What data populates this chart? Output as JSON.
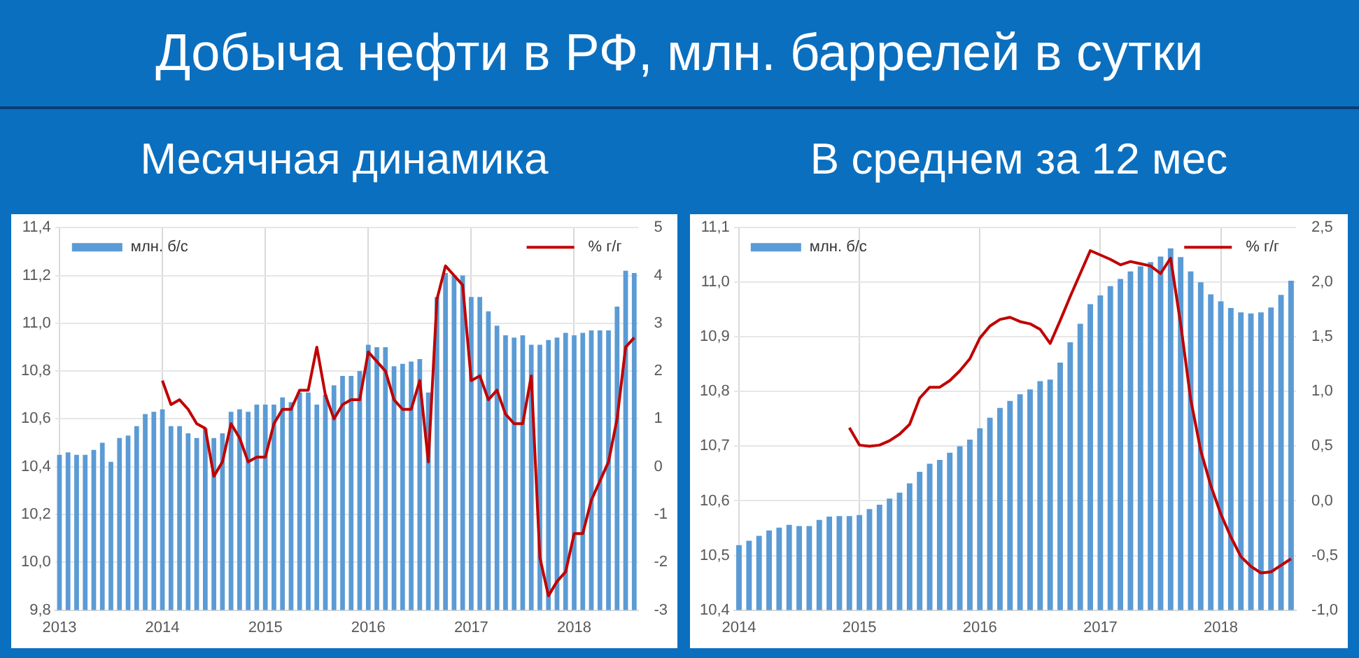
{
  "chart_data": [
    {
      "type": "bar",
      "title": "Добыча нефти в РФ, млн. баррелей в сутки",
      "subtitle": "Месячная динамика",
      "categories": [
        "2013",
        null,
        null,
        null,
        null,
        null,
        null,
        null,
        null,
        null,
        null,
        null,
        "2014",
        null,
        null,
        null,
        null,
        null,
        null,
        null,
        null,
        null,
        null,
        null,
        "2015",
        null,
        null,
        null,
        null,
        null,
        null,
        null,
        null,
        null,
        null,
        null,
        "2016",
        null,
        null,
        null,
        null,
        null,
        null,
        null,
        null,
        null,
        null,
        null,
        "2017",
        null,
        null,
        null,
        null,
        null,
        null,
        null,
        null,
        null,
        null,
        null,
        "2018",
        null,
        null,
        null,
        null,
        null,
        null,
        null
      ],
      "series": [
        {
          "name": "млн. б/с",
          "color": "#5b9bd5",
          "values": [
            10.45,
            10.46,
            10.45,
            10.45,
            10.47,
            10.5,
            10.42,
            10.52,
            10.53,
            10.57,
            10.62,
            10.63,
            10.64,
            10.57,
            10.57,
            10.54,
            10.52,
            10.56,
            10.52,
            10.54,
            10.63,
            10.64,
            10.63,
            10.66,
            10.66,
            10.66,
            10.69,
            10.67,
            10.71,
            10.71,
            10.66,
            10.7,
            10.74,
            10.78,
            10.78,
            10.8,
            10.91,
            10.9,
            10.9,
            10.82,
            10.83,
            10.84,
            10.85,
            10.71,
            11.11,
            11.21,
            11.2,
            11.2,
            11.11,
            11.11,
            11.05,
            10.99,
            10.95,
            10.94,
            10.95,
            10.91,
            10.91,
            10.93,
            10.94,
            10.96,
            10.95,
            10.96,
            10.97,
            10.97,
            10.97,
            11.07,
            11.22,
            11.21
          ]
        },
        {
          "name": "% г/г",
          "type": "line",
          "axis": "y2",
          "color": "#c00000",
          "values": [
            null,
            null,
            null,
            null,
            null,
            null,
            null,
            null,
            null,
            null,
            null,
            null,
            1.8,
            1.3,
            1.4,
            1.2,
            0.9,
            0.8,
            -0.2,
            0.1,
            0.9,
            0.6,
            0.1,
            0.2,
            0.2,
            0.9,
            1.2,
            1.2,
            1.6,
            1.6,
            2.5,
            1.5,
            1.0,
            1.3,
            1.4,
            1.4,
            2.4,
            2.2,
            2.0,
            1.4,
            1.2,
            1.2,
            1.8,
            0.1,
            3.5,
            4.2,
            4.0,
            3.8,
            1.8,
            1.9,
            1.4,
            1.6,
            1.1,
            0.9,
            0.9,
            1.9,
            -1.9,
            -2.7,
            -2.4,
            -2.2,
            -1.4,
            -1.4,
            -0.7,
            -0.3,
            0.1,
            1.0,
            2.5,
            2.7
          ]
        }
      ],
      "ylim": [
        9.8,
        11.4
      ],
      "yticks": [
        {
          "value": 9.8,
          "label": "9,8"
        },
        {
          "value": 10.0,
          "label": "10,0"
        },
        {
          "value": 10.2,
          "label": "10,2"
        },
        {
          "value": 10.4,
          "label": "10,4"
        },
        {
          "value": 10.6,
          "label": "10,6"
        },
        {
          "value": 10.8,
          "label": "10,8"
        },
        {
          "value": 11.0,
          "label": "11,0"
        },
        {
          "value": 11.2,
          "label": "11,2"
        },
        {
          "value": 11.4,
          "label": "11,4"
        }
      ],
      "y2lim": [
        -3,
        5
      ],
      "y2ticks": [
        -3,
        -2,
        -1,
        0,
        1,
        2,
        3,
        4,
        5
      ],
      "grid": true,
      "legend": "top",
      "marker": "none",
      "line_style": "solid"
    },
    {
      "type": "bar",
      "subtitle": "В среднем за 12 мес",
      "categories": [
        "2014",
        null,
        null,
        null,
        null,
        null,
        null,
        null,
        null,
        null,
        null,
        null,
        "2015",
        null,
        null,
        null,
        null,
        null,
        null,
        null,
        null,
        null,
        null,
        null,
        "2016",
        null,
        null,
        null,
        null,
        null,
        null,
        null,
        null,
        null,
        null,
        null,
        "2017",
        null,
        null,
        null,
        null,
        null,
        null,
        null,
        null,
        null,
        null,
        null,
        "2018",
        null,
        null,
        null,
        null,
        null,
        null,
        null
      ],
      "series": [
        {
          "name": "млн. б/с",
          "color": "#5b9bd5",
          "values": [
            10.519,
            10.527,
            10.536,
            10.546,
            10.551,
            10.556,
            10.554,
            10.554,
            10.565,
            10.571,
            10.572,
            10.572,
            10.574,
            10.585,
            10.593,
            10.604,
            10.615,
            10.632,
            10.653,
            10.668,
            10.675,
            10.688,
            10.7,
            10.712,
            10.733,
            10.752,
            10.77,
            10.783,
            10.795,
            10.804,
            10.819,
            10.822,
            10.853,
            10.89,
            10.924,
            10.96,
            10.976,
            10.993,
            11.006,
            11.02,
            11.029,
            11.037,
            11.047,
            11.062,
            11.046,
            11.02,
            11.0,
            10.978,
            10.965,
            10.953,
            10.945,
            10.943,
            10.945,
            10.954,
            10.977,
            11.003
          ]
        },
        {
          "name": "% г/г",
          "type": "line",
          "axis": "y2",
          "color": "#c00000",
          "values": [
            null,
            null,
            null,
            null,
            null,
            null,
            null,
            null,
            null,
            null,
            null,
            0.67,
            0.51,
            0.5,
            0.51,
            0.55,
            0.61,
            0.7,
            0.94,
            1.04,
            1.04,
            1.1,
            1.19,
            1.3,
            1.49,
            1.6,
            1.66,
            1.68,
            1.64,
            1.62,
            1.57,
            1.44,
            1.65,
            1.87,
            2.08,
            2.29,
            2.25,
            2.21,
            2.16,
            2.19,
            2.17,
            2.15,
            2.08,
            2.22,
            1.62,
            0.93,
            0.46,
            0.14,
            -0.12,
            -0.33,
            -0.51,
            -0.6,
            -0.66,
            -0.65,
            -0.59,
            -0.53
          ]
        }
      ],
      "ylim": [
        10.4,
        11.1
      ],
      "yticks": [
        {
          "value": 10.4,
          "label": "10,4"
        },
        {
          "value": 10.5,
          "label": "10,5"
        },
        {
          "value": 10.6,
          "label": "10,6"
        },
        {
          "value": 10.7,
          "label": "10,7"
        },
        {
          "value": 10.8,
          "label": "10,8"
        },
        {
          "value": 10.9,
          "label": "10,9"
        },
        {
          "value": 11.0,
          "label": "11,0"
        },
        {
          "value": 11.1,
          "label": "11,1"
        }
      ],
      "y2lim": [
        -1.0,
        2.5
      ],
      "y2ticks": [
        {
          "value": -1.0,
          "label": "-1,0"
        },
        {
          "value": -0.5,
          "label": "-0,5"
        },
        {
          "value": 0,
          "label": "0,0"
        },
        {
          "value": 0.5,
          "label": "0,5"
        },
        {
          "value": 1.0,
          "label": "1,0"
        },
        {
          "value": 1.5,
          "label": "1,5"
        },
        {
          "value": 2.0,
          "label": "2,0"
        },
        {
          "value": 2.5,
          "label": "2,5"
        }
      ],
      "grid": true,
      "legend": "top",
      "marker": "none",
      "line_style": "solid"
    }
  ]
}
